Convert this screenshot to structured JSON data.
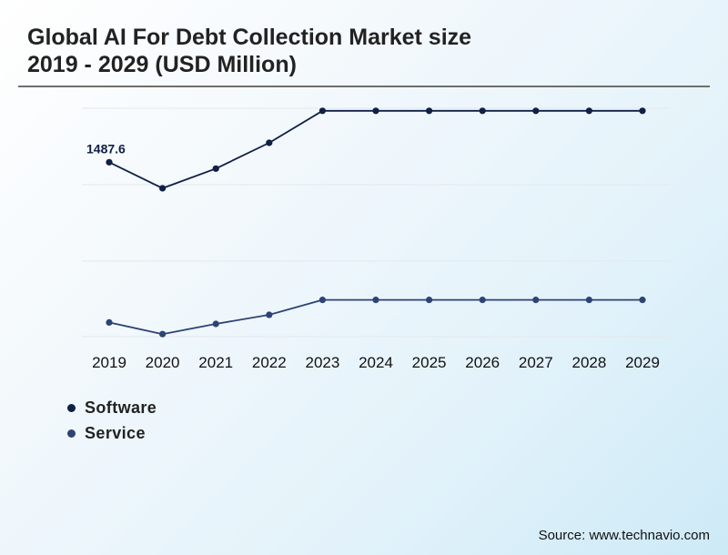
{
  "title": {
    "line1": "Global AI For Debt Collection Market size",
    "line2": "2019 - 2029 (USD Million)"
  },
  "source": "Source: www.technavio.com",
  "colors": {
    "software": "#0f1f45",
    "service": "#2e4374",
    "grid": "#e3e8ec"
  },
  "chart_data": {
    "type": "line",
    "categories": [
      "2019",
      "2020",
      "2021",
      "2022",
      "2023",
      "2024",
      "2025",
      "2026",
      "2027",
      "2028",
      "2029"
    ],
    "series": [
      {
        "name": "Software",
        "values": [
          1487.6,
          1416,
          1470,
          1541,
          1629,
          1629,
          1629,
          1629,
          1629,
          1629,
          1629
        ]
      },
      {
        "name": "Service",
        "values": [
          1047,
          1015,
          1043,
          1068,
          1109,
          1109,
          1109,
          1109,
          1109,
          1109,
          1109
        ]
      }
    ],
    "data_labels": [
      {
        "series": 0,
        "index": 0,
        "text": "1487.6"
      }
    ],
    "ylim": [
      1008,
      1636
    ],
    "grid": true,
    "legend_position": "bottom-left",
    "title": "Global AI For Debt Collection Market size 2019 - 2029 (USD Million)",
    "xlabel": "",
    "ylabel": ""
  }
}
